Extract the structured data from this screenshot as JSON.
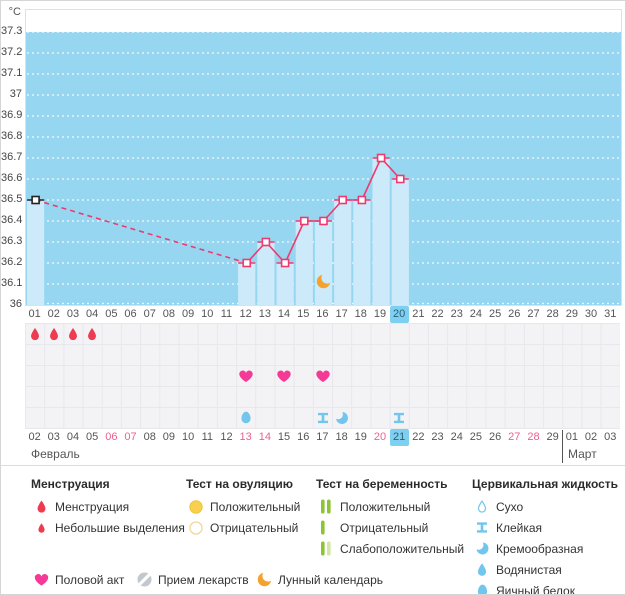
{
  "chart_data": {
    "type": "line",
    "unit": "°C",
    "x_labels": [
      "01",
      "02",
      "03",
      "04",
      "05",
      "06",
      "07",
      "08",
      "09",
      "10",
      "11",
      "12",
      "13",
      "14",
      "15",
      "16",
      "17",
      "18",
      "19",
      "20",
      "21",
      "22",
      "23",
      "24",
      "25",
      "26",
      "27",
      "28",
      "29",
      "30",
      "31"
    ],
    "y_ticks": [
      "37.3",
      "37.2",
      "37.1",
      "37",
      "36.9",
      "36.8",
      "36.7",
      "36.6",
      "36.5",
      "36.4",
      "36.3",
      "36.2",
      "36.1",
      "36"
    ],
    "ylim": [
      36.0,
      37.44
    ],
    "shaded_region_top": 37.3,
    "grid": "dotted-horizontal",
    "series": [
      {
        "name": "basal-temperature",
        "points": {
          "1": 36.5,
          "12": 36.2,
          "13": 36.3,
          "14": 36.2,
          "15": 36.4,
          "16": 36.4,
          "17": 36.5,
          "18": 36.5,
          "19": 36.7,
          "20": 36.6
        }
      }
    ],
    "black_marker_day": "1",
    "dashed_gap_segment": [
      1,
      12
    ],
    "moon_day": 16,
    "highlighted_cycle_day": "20"
  },
  "symptom_rows": [
    {
      "name": "menstruation",
      "icons": [
        {
          "day": 1,
          "type": "drop"
        },
        {
          "day": 2,
          "type": "drop"
        },
        {
          "day": 3,
          "type": "drop"
        },
        {
          "day": 4,
          "type": "drop"
        }
      ]
    },
    {
      "name": "ovulation-test",
      "icons": []
    },
    {
      "name": "intercourse",
      "icons": [
        {
          "day": 12,
          "type": "heart"
        },
        {
          "day": 14,
          "type": "heart"
        },
        {
          "day": 16,
          "type": "heart"
        }
      ]
    },
    {
      "name": "pregnancy-test",
      "icons": []
    },
    {
      "name": "cervical-fluid",
      "icons": [
        {
          "day": 12,
          "type": "eggwhite"
        },
        {
          "day": 16,
          "type": "sticky"
        },
        {
          "day": 17,
          "type": "creamy"
        },
        {
          "day": 20,
          "type": "sticky"
        }
      ]
    }
  ],
  "date_row": [
    {
      "t": "02"
    },
    {
      "t": "03"
    },
    {
      "t": "04"
    },
    {
      "t": "05"
    },
    {
      "t": "06",
      "w": 1
    },
    {
      "t": "07",
      "w": 1
    },
    {
      "t": "08"
    },
    {
      "t": "09"
    },
    {
      "t": "10"
    },
    {
      "t": "11"
    },
    {
      "t": "12"
    },
    {
      "t": "13",
      "w": 1
    },
    {
      "t": "14",
      "w": 1
    },
    {
      "t": "15"
    },
    {
      "t": "16"
    },
    {
      "t": "17"
    },
    {
      "t": "18"
    },
    {
      "t": "19"
    },
    {
      "t": "20",
      "w": 1
    },
    {
      "t": "21",
      "h": 1
    },
    {
      "t": "22"
    },
    {
      "t": "23"
    },
    {
      "t": "24"
    },
    {
      "t": "25"
    },
    {
      "t": "26"
    },
    {
      "t": "27",
      "w": 1
    },
    {
      "t": "28",
      "w": 1
    },
    {
      "t": "29"
    },
    {
      "t": "01",
      "m": 1
    },
    {
      "t": "02"
    },
    {
      "t": "03"
    }
  ],
  "months": {
    "february": "Февраль",
    "march": "Март"
  },
  "legend": {
    "sections": [
      {
        "title": "Менструация",
        "items": [
          {
            "icon": "drop",
            "label": "Менструация"
          },
          {
            "icon": "drop_small",
            "label": "Небольшие выделения"
          }
        ]
      },
      {
        "title": "Тест на овуляцию",
        "items": [
          {
            "icon": "circle_filled",
            "label": "Положительный"
          },
          {
            "icon": "circle_outline",
            "label": "Отрицательный"
          }
        ]
      },
      {
        "title": "Тест на беременность",
        "items": [
          {
            "icon": "bars2",
            "label": "Положительный"
          },
          {
            "icon": "bar1",
            "label": "Отрицательный"
          },
          {
            "icon": "bars_weak",
            "label": "Слабоположительный"
          }
        ]
      },
      {
        "title": "Цервикальная жидкость",
        "items": [
          {
            "icon": "dry",
            "label": "Сухо"
          },
          {
            "icon": "sticky",
            "label": "Клейкая"
          },
          {
            "icon": "creamy",
            "label": "Кремообразная"
          },
          {
            "icon": "watery",
            "label": "Водянистая"
          },
          {
            "icon": "eggwhite",
            "label": "Яичный белок"
          }
        ]
      }
    ],
    "extra": [
      {
        "icon": "heart",
        "label": "Половой акт"
      },
      {
        "icon": "pill",
        "label": "Прием лекарств"
      },
      {
        "icon": "moon",
        "label": "Лунный календарь"
      }
    ]
  },
  "colors": {
    "plot_bg": "#96d6f0",
    "bar_fill": "#cdeafa",
    "line_pink": "#ee3a70",
    "black_marker": "#222222",
    "highlight_blue": "#7ed0f1",
    "weekend_pink": "#ee5f94",
    "red": "#ee3b52",
    "pink": "#f43a96",
    "yellow": "#f8d04e",
    "yellow_stroke": "#edc53f",
    "yellow_outline": "#f0d896",
    "green": "#8dc434",
    "green_light": "#d3e6a6",
    "blue": "#72c5ec",
    "orange": "#f5a12e",
    "gray": "#c3c7ce",
    "grid_line": "#e7e7ed"
  }
}
